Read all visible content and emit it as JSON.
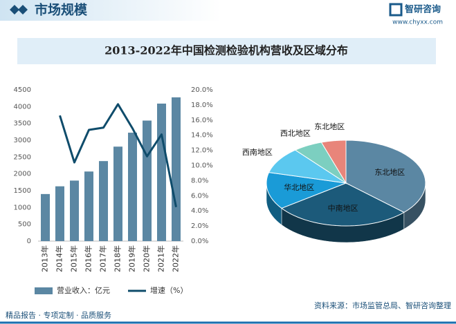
{
  "header": {
    "title": "市场规模",
    "brand": "智研咨询",
    "url": "www.chyxx.com"
  },
  "chart_data": [
    {
      "type": "bar",
      "title": "2013-2022年中国检测检验机构营收及区域分布",
      "categories": [
        "2013年",
        "2014年",
        "2015年",
        "2016年",
        "2017年",
        "2018年",
        "2019年",
        "2020年",
        "2021年",
        "2022年"
      ],
      "series": [
        {
          "name": "营业收入：亿元",
          "type": "bar",
          "color": "#5b87a3",
          "values": [
            1400,
            1630,
            1800,
            2070,
            2380,
            2810,
            3225,
            3585,
            4090,
            4276
          ]
        },
        {
          "name": "增速（%）",
          "type": "line",
          "axis": "y2",
          "color": "#0f4c6b",
          "values": [
            null,
            16.6,
            10.4,
            14.7,
            15.0,
            18.1,
            14.9,
            11.2,
            14.1,
            4.5
          ]
        }
      ],
      "ylim": [
        0,
        4500
      ],
      "yticks": [
        0,
        500,
        1000,
        1500,
        2000,
        2500,
        3000,
        3500,
        4000,
        4500
      ],
      "y2lim": [
        0,
        20
      ],
      "y2ticks": [
        {
          "value": 0,
          "label": "0.0%"
        },
        {
          "value": 2,
          "label": "2.0%"
        },
        {
          "value": 4,
          "label": "4.0%"
        },
        {
          "value": 6,
          "label": "6.0%"
        },
        {
          "value": 8,
          "label": "8.0%"
        },
        {
          "value": 10,
          "label": "10.0%"
        },
        {
          "value": 12,
          "label": "12.0%"
        },
        {
          "value": 14,
          "label": "14.0%"
        },
        {
          "value": 16,
          "label": "16.0%"
        },
        {
          "value": 18,
          "label": "18.0%"
        },
        {
          "value": 20,
          "label": "20.0%"
        }
      ],
      "legend": "bottom"
    },
    {
      "type": "pie",
      "categories": [
        "东北地区",
        "中南地区",
        "华北地区",
        "西南地区",
        "西北地区",
        "东北地区"
      ],
      "values": [
        37,
        28,
        14,
        10,
        6,
        5
      ],
      "colors": [
        "#5b87a3",
        "#1c5a7a",
        "#1a9bd7",
        "#5bc8ef",
        "#7ccfc0",
        "#e8857a"
      ]
    }
  ],
  "footer": {
    "slogan": "精品报告 · 专项定制 · 品质服务",
    "source": "资料来源：市场监管总局、智研咨询整理"
  }
}
